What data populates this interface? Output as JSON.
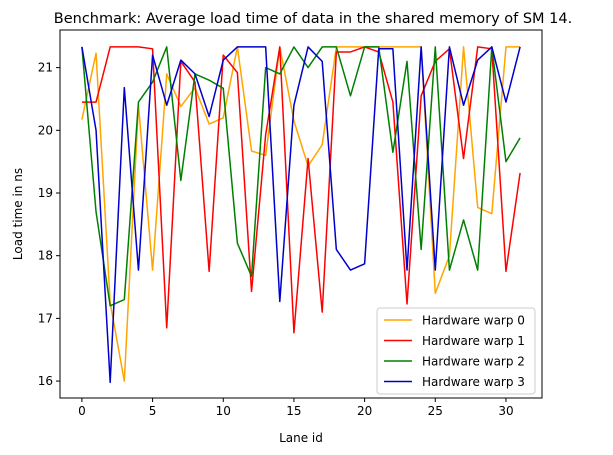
{
  "chart_data": {
    "type": "line",
    "title": "Benchmark: Average load time of data in the shared memory of SM 14.",
    "xlabel": "Lane id",
    "ylabel": "Load time in ns",
    "xlim": [
      -1.55,
      32.55
    ],
    "ylim": [
      15.73,
      21.6
    ],
    "xticks": [
      0,
      5,
      10,
      15,
      20,
      25,
      30
    ],
    "yticks": [
      16,
      17,
      18,
      19,
      20,
      21
    ],
    "grid": false,
    "legend_position": "bottom-right",
    "x": [
      0,
      1,
      2,
      3,
      4,
      5,
      6,
      7,
      8,
      9,
      10,
      11,
      12,
      13,
      14,
      15,
      16,
      17,
      18,
      19,
      20,
      21,
      22,
      23,
      24,
      25,
      26,
      27,
      28,
      29,
      30,
      31
    ],
    "series": [
      {
        "name": "Hardware warp 0",
        "color": "#ffa500",
        "values": [
          20.17,
          21.23,
          17.25,
          16.0,
          20.4,
          17.77,
          20.9,
          20.38,
          20.68,
          20.1,
          20.2,
          21.33,
          19.67,
          19.6,
          21.33,
          20.15,
          19.43,
          19.77,
          21.33,
          21.33,
          21.33,
          21.33,
          21.33,
          21.33,
          21.33,
          17.4,
          18.0,
          21.33,
          18.77,
          18.67,
          21.33,
          21.33
        ]
      },
      {
        "name": "Hardware warp 1",
        "color": "#ff0000",
        "values": [
          20.45,
          20.45,
          21.33,
          21.33,
          21.33,
          21.3,
          16.85,
          21.1,
          20.77,
          17.75,
          21.2,
          20.92,
          17.43,
          19.93,
          21.33,
          16.77,
          19.55,
          17.1,
          21.25,
          21.25,
          21.33,
          21.25,
          20.45,
          17.23,
          20.55,
          21.1,
          21.3,
          19.55,
          21.33,
          21.3,
          17.75,
          19.32
        ]
      },
      {
        "name": "Hardware warp 2",
        "color": "#008000",
        "values": [
          21.33,
          18.7,
          17.2,
          17.3,
          20.45,
          20.77,
          21.33,
          19.2,
          20.9,
          20.8,
          20.67,
          18.2,
          17.67,
          21.0,
          20.9,
          21.33,
          21.0,
          21.33,
          21.33,
          20.55,
          21.33,
          21.33,
          19.65,
          21.1,
          18.1,
          21.33,
          17.77,
          18.57,
          17.77,
          21.33,
          19.5,
          19.88
        ]
      },
      {
        "name": "Hardware warp 3",
        "color": "#0000cd",
        "values": [
          21.33,
          20.0,
          15.98,
          20.68,
          17.77,
          21.2,
          20.4,
          21.12,
          20.9,
          20.22,
          21.12,
          21.33,
          21.33,
          21.33,
          17.27,
          20.4,
          21.33,
          21.1,
          18.1,
          17.77,
          17.87,
          21.3,
          21.3,
          17.77,
          21.33,
          17.77,
          21.33,
          20.4,
          21.12,
          21.33,
          20.45,
          21.33
        ]
      }
    ]
  }
}
